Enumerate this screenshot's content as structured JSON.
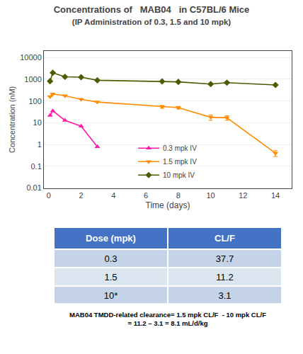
{
  "chart_data": [
    {
      "type": "line",
      "title": "Concentrations of   MAB04   in C57BL/6 Mice",
      "subtitle": "(IP Administration of 0.3, 1.5 and 10 mpk)",
      "xlabel": "Time (days)",
      "ylabel": "Concentration (nM)",
      "x": [
        0.08,
        0.25,
        1,
        2,
        3,
        7,
        8,
        10,
        11,
        14
      ],
      "series": [
        {
          "name": "0.3 mpk IV",
          "color": "#ff1aaa",
          "marker": "triangle-up",
          "values": [
            22,
            35,
            13,
            7,
            0.8,
            null,
            null,
            null,
            null,
            null
          ]
        },
        {
          "name": "1.5 mpk IV",
          "color": "#ff8c00",
          "marker": "triangle-down",
          "values": [
            160,
            210,
            175,
            120,
            90,
            55,
            50,
            18,
            17,
            0.4
          ],
          "yerr": [
            0,
            0,
            0,
            0,
            0,
            8,
            7,
            5,
            4,
            0.12
          ]
        },
        {
          "name": "10 mpk IV",
          "color": "#4d5a00",
          "marker": "diamond",
          "values": [
            820,
            2000,
            1300,
            1250,
            900,
            800,
            760,
            600,
            700,
            550
          ],
          "yerr": [
            0,
            0,
            0,
            0,
            0,
            0,
            0,
            50,
            60,
            0
          ]
        }
      ],
      "log": "y",
      "xlim": [
        -0.3,
        15
      ],
      "xticks": [
        0,
        2,
        4,
        6,
        8,
        10,
        12,
        14
      ],
      "ylim": [
        0.01,
        20000
      ],
      "yticks": [
        0.01,
        0.1,
        1,
        10,
        100,
        1000,
        10000
      ],
      "grid": true,
      "legend": "lower center"
    },
    {
      "type": "table",
      "xlabel": "Dose (mpk)",
      "categories": [
        "0.3",
        "1.5",
        "10*"
      ],
      "series": [
        {
          "name": "CL/F",
          "values": [
            37.7,
            11.2,
            3.1
          ]
        }
      ],
      "color": "#4472c4",
      "colors": [
        "#c5d3e8",
        "#dce6f1",
        "#c5d3e8"
      ],
      "annotations": [
        "MAB04 TMDD-related clearance= 1.5 mpk CL/F  - 10 mpk CL/F\n= 11.2 – 3.1 = 8.1 mL/d/kg"
      ]
    }
  ]
}
